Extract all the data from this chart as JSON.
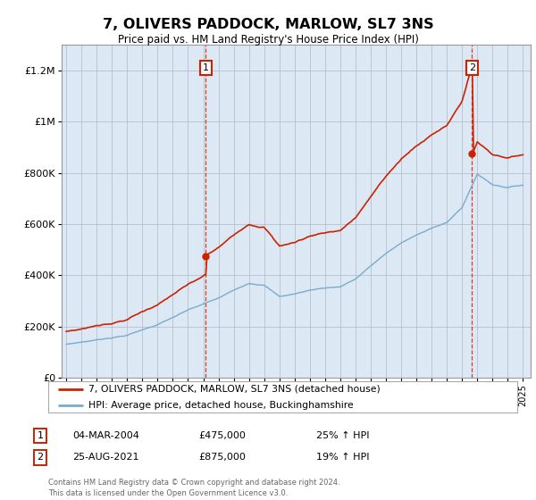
{
  "title": "7, OLIVERS PADDOCK, MARLOW, SL7 3NS",
  "subtitle": "Price paid vs. HM Land Registry's House Price Index (HPI)",
  "legend_line1": "7, OLIVERS PADDOCK, MARLOW, SL7 3NS (detached house)",
  "legend_line2": "HPI: Average price, detached house, Buckinghamshire",
  "annotation1_label": "1",
  "annotation1_date": "04-MAR-2004",
  "annotation1_price": 475000,
  "annotation1_hpi": "25% ↑ HPI",
  "annotation2_label": "2",
  "annotation2_date": "25-AUG-2021",
  "annotation2_price": 875000,
  "annotation2_hpi": "19% ↑ HPI",
  "footer": "Contains HM Land Registry data © Crown copyright and database right 2024.\nThis data is licensed under the Open Government Licence v3.0.",
  "red_color": "#cc2200",
  "blue_color": "#7aaacc",
  "background_color": "#dce9f5",
  "ylim": [
    0,
    1300000
  ],
  "yticks": [
    0,
    200000,
    400000,
    600000,
    800000,
    1000000,
    1200000
  ],
  "ytick_labels": [
    "£0",
    "£200K",
    "£400K",
    "£600K",
    "£800K",
    "£1M",
    "£1.2M"
  ],
  "sale1_year": 2004.17,
  "sale1_price": 475000,
  "sale2_year": 2021.65,
  "sale2_price": 875000,
  "start_year": 1995,
  "end_year": 2025
}
